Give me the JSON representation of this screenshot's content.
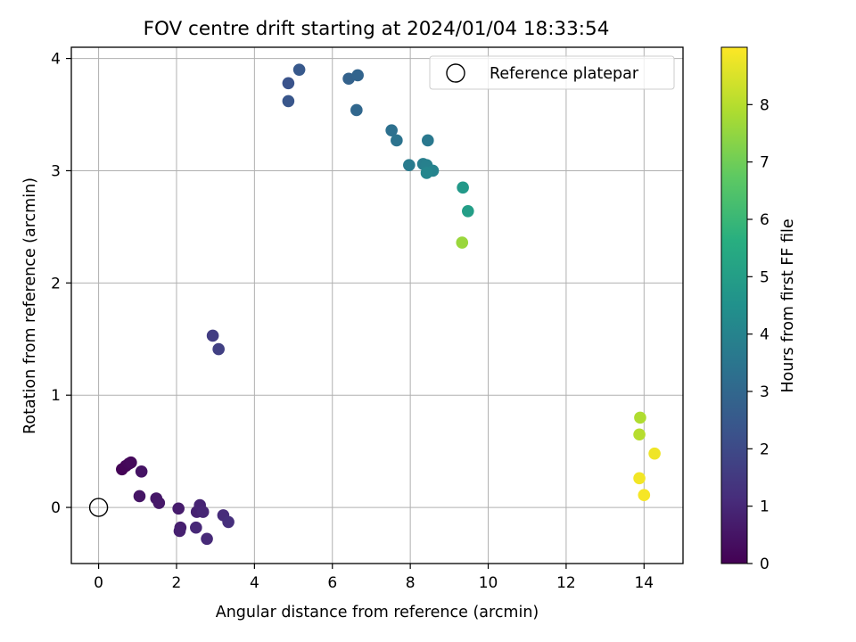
{
  "chart_data": {
    "type": "scatter",
    "title": "FOV centre drift starting at 2024/01/04 18:33:54",
    "xlabel": "Angular distance from reference (arcmin)",
    "ylabel": "Rotation from reference (arcmin)",
    "xlim": [
      -0.7,
      15.0
    ],
    "ylim": [
      -0.5,
      4.1
    ],
    "xticks": [
      0,
      2,
      4,
      6,
      8,
      10,
      12,
      14
    ],
    "yticks": [
      0,
      1,
      2,
      3,
      4
    ],
    "grid": true,
    "legend": {
      "position": "top-right",
      "label": "Reference platepar"
    },
    "reference_point": {
      "x": 0,
      "y": 0
    },
    "colorbar": {
      "label": "Hours from first FF file",
      "colormap": "viridis",
      "range": [
        0,
        9.0
      ],
      "ticks": [
        0,
        1,
        2,
        3,
        4,
        5,
        6,
        7,
        8
      ]
    },
    "points": [
      {
        "x": 0.6,
        "y": 0.34,
        "hours": 0.05
      },
      {
        "x": 0.7,
        "y": 0.37,
        "hours": 0.1
      },
      {
        "x": 0.78,
        "y": 0.39,
        "hours": 0.15
      },
      {
        "x": 0.83,
        "y": 0.4,
        "hours": 0.2
      },
      {
        "x": 1.1,
        "y": 0.32,
        "hours": 0.45
      },
      {
        "x": 1.05,
        "y": 0.1,
        "hours": 0.5
      },
      {
        "x": 1.48,
        "y": 0.08,
        "hours": 0.55
      },
      {
        "x": 1.55,
        "y": 0.04,
        "hours": 0.6
      },
      {
        "x": 2.05,
        "y": -0.01,
        "hours": 0.7
      },
      {
        "x": 2.1,
        "y": -0.18,
        "hours": 0.75
      },
      {
        "x": 2.08,
        "y": -0.21,
        "hours": 0.8
      },
      {
        "x": 2.52,
        "y": -0.04,
        "hours": 0.85
      },
      {
        "x": 2.6,
        "y": 0.02,
        "hours": 0.9
      },
      {
        "x": 2.68,
        "y": -0.04,
        "hours": 0.95
      },
      {
        "x": 2.5,
        "y": -0.18,
        "hours": 1.0
      },
      {
        "x": 2.78,
        "y": -0.28,
        "hours": 1.05
      },
      {
        "x": 3.2,
        "y": -0.07,
        "hours": 1.1
      },
      {
        "x": 3.33,
        "y": -0.13,
        "hours": 1.2
      },
      {
        "x": 2.93,
        "y": 1.53,
        "hours": 1.6
      },
      {
        "x": 3.08,
        "y": 1.41,
        "hours": 1.7
      },
      {
        "x": 4.87,
        "y": 3.78,
        "hours": 2.3
      },
      {
        "x": 4.87,
        "y": 3.62,
        "hours": 2.4
      },
      {
        "x": 5.15,
        "y": 3.9,
        "hours": 2.5
      },
      {
        "x": 6.42,
        "y": 3.82,
        "hours": 2.8
      },
      {
        "x": 6.65,
        "y": 3.85,
        "hours": 2.9
      },
      {
        "x": 6.62,
        "y": 3.54,
        "hours": 3.0
      },
      {
        "x": 7.52,
        "y": 3.36,
        "hours": 3.3
      },
      {
        "x": 7.65,
        "y": 3.27,
        "hours": 3.4
      },
      {
        "x": 8.45,
        "y": 3.27,
        "hours": 3.6
      },
      {
        "x": 7.97,
        "y": 3.05,
        "hours": 3.7
      },
      {
        "x": 8.33,
        "y": 3.06,
        "hours": 3.8
      },
      {
        "x": 8.42,
        "y": 3.05,
        "hours": 3.9
      },
      {
        "x": 8.58,
        "y": 3.0,
        "hours": 4.0
      },
      {
        "x": 8.42,
        "y": 2.98,
        "hours": 4.1
      },
      {
        "x": 9.35,
        "y": 2.85,
        "hours": 4.8
      },
      {
        "x": 9.48,
        "y": 2.64,
        "hours": 5.0
      },
      {
        "x": 9.33,
        "y": 2.36,
        "hours": 7.6
      },
      {
        "x": 13.9,
        "y": 0.8,
        "hours": 7.9
      },
      {
        "x": 13.88,
        "y": 0.65,
        "hours": 8.0
      },
      {
        "x": 14.27,
        "y": 0.48,
        "hours": 8.8
      },
      {
        "x": 13.88,
        "y": 0.26,
        "hours": 8.85
      },
      {
        "x": 14.0,
        "y": 0.11,
        "hours": 8.9
      }
    ]
  }
}
